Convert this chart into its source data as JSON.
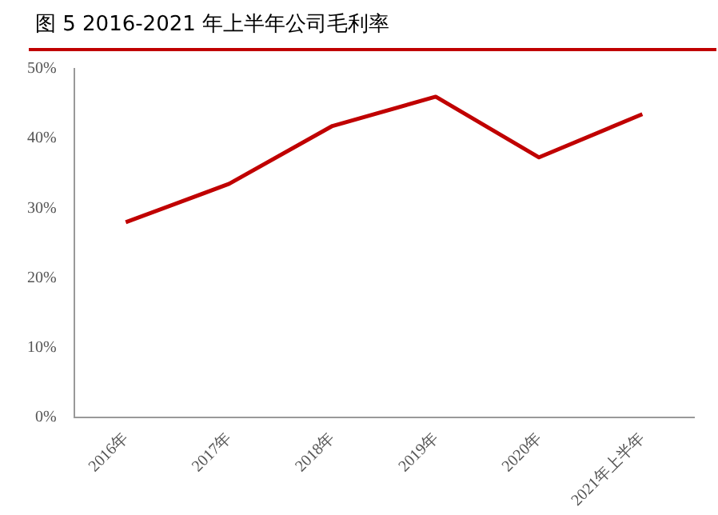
{
  "chart_data": {
    "type": "line",
    "title": "图 5 2016-2021 年上半年公司毛利率",
    "categories": [
      "2016年",
      "2017年",
      "2018年",
      "2019年",
      "2020年",
      "2021年上半年"
    ],
    "series": [
      {
        "color": "#c00000",
        "values": [
          28,
          33.5,
          41.8,
          46,
          37.3,
          43.5
        ]
      }
    ],
    "ylim": [
      0,
      50
    ],
    "yticks": [
      {
        "value": 0,
        "label": "0%"
      },
      {
        "value": 10,
        "label": "10%"
      },
      {
        "value": 20,
        "label": "20%"
      },
      {
        "value": 30,
        "label": "30%"
      },
      {
        "value": 40,
        "label": "40%"
      },
      {
        "value": 50,
        "label": "50%"
      }
    ],
    "grid": false,
    "legend": false,
    "marker": "none",
    "line_style": "solid"
  }
}
